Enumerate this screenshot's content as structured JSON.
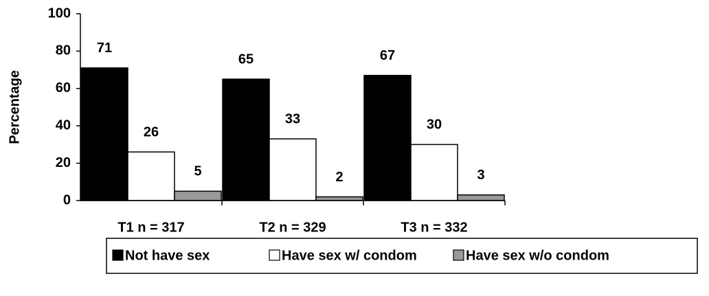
{
  "chart_data": {
    "type": "bar",
    "categories": [
      "T1 n = 317",
      "T2 n = 329",
      "T3 n = 332"
    ],
    "series": [
      {
        "name": "Not have sex",
        "color": "#000000",
        "values": [
          71,
          65,
          67
        ]
      },
      {
        "name": "Have sex w/ condom",
        "color": "#ffffff",
        "values": [
          26,
          33,
          30
        ]
      },
      {
        "name": "Have sex w/o condom",
        "color": "#999999",
        "values": [
          5,
          2,
          3
        ]
      }
    ],
    "y_label": "Percentage",
    "ylim": [
      0,
      100
    ],
    "yticks": [
      0,
      20,
      40,
      60,
      80,
      100
    ],
    "legend": "bottom",
    "grid": false
  }
}
